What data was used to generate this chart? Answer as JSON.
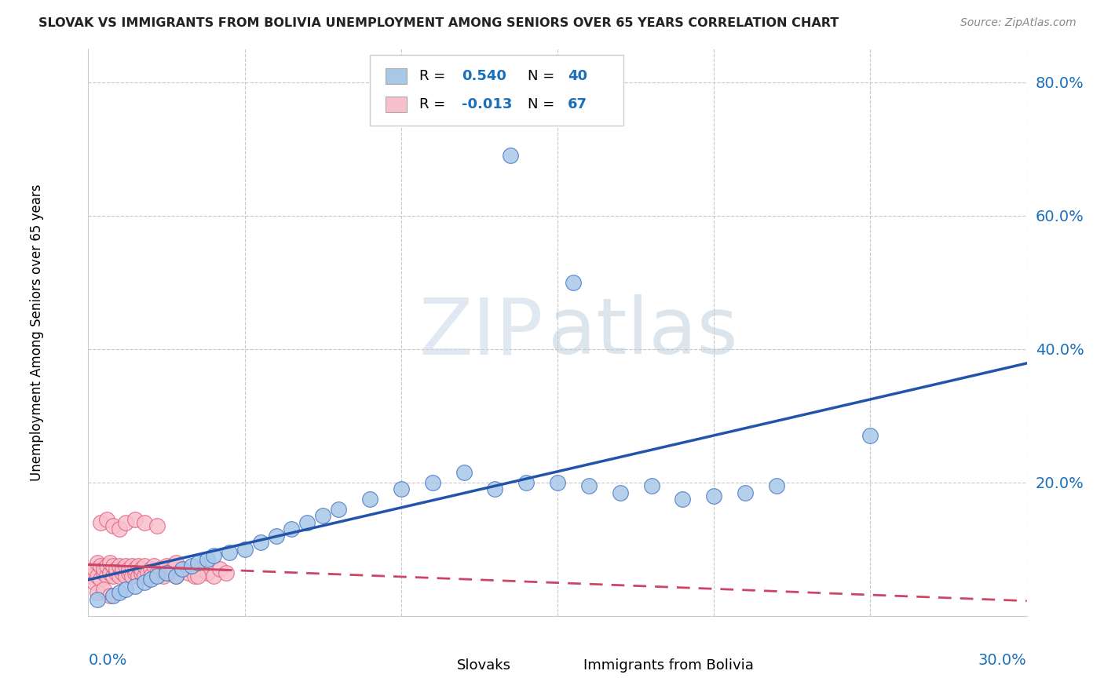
{
  "title": "SLOVAK VS IMMIGRANTS FROM BOLIVIA UNEMPLOYMENT AMONG SENIORS OVER 65 YEARS CORRELATION CHART",
  "source": "Source: ZipAtlas.com",
  "ylabel": "Unemployment Among Seniors over 65 years",
  "xlim": [
    0.0,
    0.3
  ],
  "ylim": [
    0.0,
    0.85
  ],
  "xticks": [
    0.0,
    0.05,
    0.1,
    0.15,
    0.2,
    0.25,
    0.3
  ],
  "yticks": [
    0.0,
    0.2,
    0.4,
    0.6,
    0.8
  ],
  "slovak_color": "#a8c8e8",
  "slovak_edge": "#4472c4",
  "bolivia_color": "#f8c0cc",
  "bolivia_edge": "#e06080",
  "line_slovak": "#2255aa",
  "line_bolivia": "#cc4466",
  "R_slovak": 0.54,
  "N_slovak": 40,
  "R_bolivia": -0.013,
  "N_bolivia": 67,
  "accent_color": "#1a6fbb",
  "watermark_zip": "ZIP",
  "watermark_atlas": "atlas",
  "slovak_x": [
    0.003,
    0.008,
    0.01,
    0.012,
    0.015,
    0.018,
    0.02,
    0.022,
    0.025,
    0.028,
    0.03,
    0.033,
    0.035,
    0.038,
    0.04,
    0.045,
    0.05,
    0.055,
    0.06,
    0.065,
    0.07,
    0.075,
    0.08,
    0.09,
    0.1,
    0.11,
    0.12,
    0.13,
    0.14,
    0.15,
    0.16,
    0.17,
    0.18,
    0.19,
    0.2,
    0.21,
    0.22,
    0.25,
    0.135,
    0.155
  ],
  "slovak_y": [
    0.025,
    0.03,
    0.035,
    0.04,
    0.045,
    0.05,
    0.055,
    0.06,
    0.065,
    0.06,
    0.07,
    0.075,
    0.08,
    0.085,
    0.09,
    0.095,
    0.1,
    0.11,
    0.12,
    0.13,
    0.14,
    0.15,
    0.16,
    0.175,
    0.19,
    0.2,
    0.215,
    0.19,
    0.2,
    0.2,
    0.195,
    0.185,
    0.195,
    0.175,
    0.18,
    0.185,
    0.195,
    0.27,
    0.69,
    0.5
  ],
  "bolivia_x": [
    0.001,
    0.002,
    0.002,
    0.003,
    0.003,
    0.004,
    0.004,
    0.005,
    0.005,
    0.006,
    0.006,
    0.007,
    0.007,
    0.008,
    0.008,
    0.009,
    0.009,
    0.01,
    0.01,
    0.011,
    0.011,
    0.012,
    0.012,
    0.013,
    0.013,
    0.014,
    0.014,
    0.015,
    0.015,
    0.016,
    0.016,
    0.017,
    0.017,
    0.018,
    0.018,
    0.019,
    0.02,
    0.02,
    0.021,
    0.022,
    0.023,
    0.024,
    0.025,
    0.026,
    0.027,
    0.028,
    0.03,
    0.032,
    0.034,
    0.036,
    0.038,
    0.04,
    0.042,
    0.044,
    0.004,
    0.006,
    0.008,
    0.01,
    0.012,
    0.015,
    0.018,
    0.022,
    0.028,
    0.035,
    0.003,
    0.005,
    0.007
  ],
  "bolivia_y": [
    0.06,
    0.05,
    0.07,
    0.06,
    0.08,
    0.055,
    0.075,
    0.065,
    0.07,
    0.06,
    0.075,
    0.065,
    0.08,
    0.06,
    0.075,
    0.065,
    0.07,
    0.06,
    0.075,
    0.065,
    0.07,
    0.06,
    0.075,
    0.065,
    0.07,
    0.06,
    0.075,
    0.065,
    0.07,
    0.06,
    0.075,
    0.065,
    0.07,
    0.06,
    0.075,
    0.065,
    0.07,
    0.06,
    0.075,
    0.065,
    0.07,
    0.06,
    0.075,
    0.065,
    0.07,
    0.06,
    0.07,
    0.065,
    0.06,
    0.07,
    0.065,
    0.06,
    0.07,
    0.065,
    0.14,
    0.145,
    0.135,
    0.13,
    0.14,
    0.145,
    0.14,
    0.135,
    0.08,
    0.06,
    0.035,
    0.04,
    0.03
  ]
}
